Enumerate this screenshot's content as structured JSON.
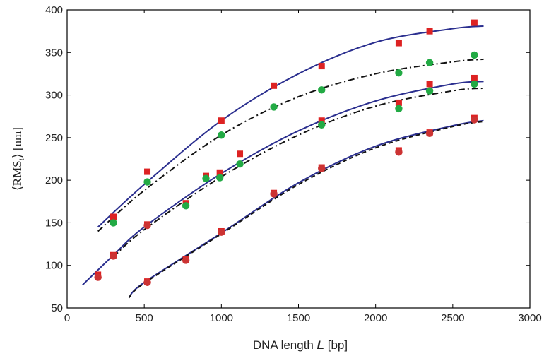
{
  "chart_data": {
    "type": "scatter",
    "title": "",
    "xlabel_parts": [
      "DNA length ",
      "L",
      " [bp]"
    ],
    "ylabel_parts": [
      "⟨RMS",
      "t",
      "⟩  [nm]"
    ],
    "xlim": [
      0,
      3000
    ],
    "ylim": [
      50,
      400
    ],
    "xticks": [
      0,
      500,
      1000,
      1500,
      2000,
      2500,
      3000
    ],
    "yticks": [
      50,
      100,
      150,
      200,
      250,
      300,
      350,
      400
    ],
    "grid": false,
    "colors": {
      "square_marker": "#dd2222",
      "circle_marker": "#22aa44",
      "solid_curve": "#2b2f8f",
      "dashdot_curve": "#111111"
    },
    "curves": [
      {
        "style": "solid",
        "points": [
          [
            200,
            145
          ],
          [
            500,
            195
          ],
          [
            1000,
            270
          ],
          [
            1500,
            325
          ],
          [
            2000,
            362
          ],
          [
            2500,
            378
          ],
          [
            2700,
            381
          ]
        ]
      },
      {
        "style": "dashdot",
        "points": [
          [
            200,
            140
          ],
          [
            500,
            188
          ],
          [
            1000,
            253
          ],
          [
            1500,
            298
          ],
          [
            2000,
            325
          ],
          [
            2500,
            339
          ],
          [
            2700,
            342
          ]
        ]
      },
      {
        "style": "solid",
        "points": [
          [
            100,
            77
          ],
          [
            300,
            112
          ],
          [
            500,
            145
          ],
          [
            1000,
            208
          ],
          [
            1500,
            258
          ],
          [
            2000,
            293
          ],
          [
            2500,
            313
          ],
          [
            2700,
            316
          ]
        ]
      },
      {
        "style": "dashdot",
        "points": [
          [
            300,
            110
          ],
          [
            500,
            142
          ],
          [
            1000,
            204
          ],
          [
            1500,
            253
          ],
          [
            2000,
            287
          ],
          [
            2500,
            305
          ],
          [
            2700,
            308
          ]
        ]
      },
      {
        "style": "solid",
        "points": [
          [
            400,
            62
          ],
          [
            500,
            80
          ],
          [
            1000,
            138
          ],
          [
            1500,
            197
          ],
          [
            2000,
            240
          ],
          [
            2500,
            264
          ],
          [
            2700,
            270
          ]
        ]
      },
      {
        "style": "dashed",
        "points": [
          [
            400,
            62
          ],
          [
            500,
            79
          ],
          [
            1000,
            137
          ],
          [
            1500,
            195
          ],
          [
            2000,
            238
          ],
          [
            2500,
            263
          ],
          [
            2700,
            269
          ]
        ]
      }
    ],
    "series": [
      {
        "marker": "square",
        "color": "#dd2222",
        "points": [
          [
            300,
            157
          ],
          [
            520,
            210
          ],
          [
            1000,
            270
          ],
          [
            1340,
            311
          ],
          [
            1650,
            334
          ],
          [
            2150,
            361
          ],
          [
            2350,
            375
          ],
          [
            2640,
            385
          ],
          [
            200,
            89
          ],
          [
            300,
            112
          ],
          [
            520,
            148
          ],
          [
            770,
            173
          ],
          [
            900,
            205
          ],
          [
            990,
            209
          ],
          [
            1120,
            231
          ],
          [
            1650,
            270
          ],
          [
            2150,
            291
          ],
          [
            2350,
            313
          ],
          [
            2640,
            320
          ],
          [
            520,
            81
          ],
          [
            770,
            107
          ],
          [
            1000,
            140
          ],
          [
            1340,
            185
          ],
          [
            1650,
            215
          ],
          [
            2150,
            235
          ],
          [
            2350,
            256
          ],
          [
            2640,
            273
          ]
        ]
      },
      {
        "marker": "circle",
        "color": "#22aa44",
        "points": [
          [
            300,
            150
          ],
          [
            520,
            198
          ],
          [
            1000,
            253
          ],
          [
            1340,
            286
          ],
          [
            1650,
            306
          ],
          [
            2150,
            326
          ],
          [
            2350,
            338
          ],
          [
            2640,
            347
          ],
          [
            770,
            170
          ],
          [
            900,
            202
          ],
          [
            990,
            203
          ],
          [
            1120,
            219
          ],
          [
            1650,
            265
          ],
          [
            2150,
            284
          ],
          [
            2350,
            305
          ],
          [
            2640,
            313
          ]
        ]
      },
      {
        "marker": "circle",
        "color": "#cc3333",
        "points": [
          [
            200,
            86
          ],
          [
            300,
            111
          ],
          [
            520,
            147
          ],
          [
            520,
            80
          ],
          [
            770,
            106
          ],
          [
            1000,
            139
          ],
          [
            1340,
            184
          ],
          [
            1650,
            214
          ],
          [
            2150,
            233
          ],
          [
            2350,
            255
          ],
          [
            2640,
            271
          ]
        ]
      }
    ]
  }
}
